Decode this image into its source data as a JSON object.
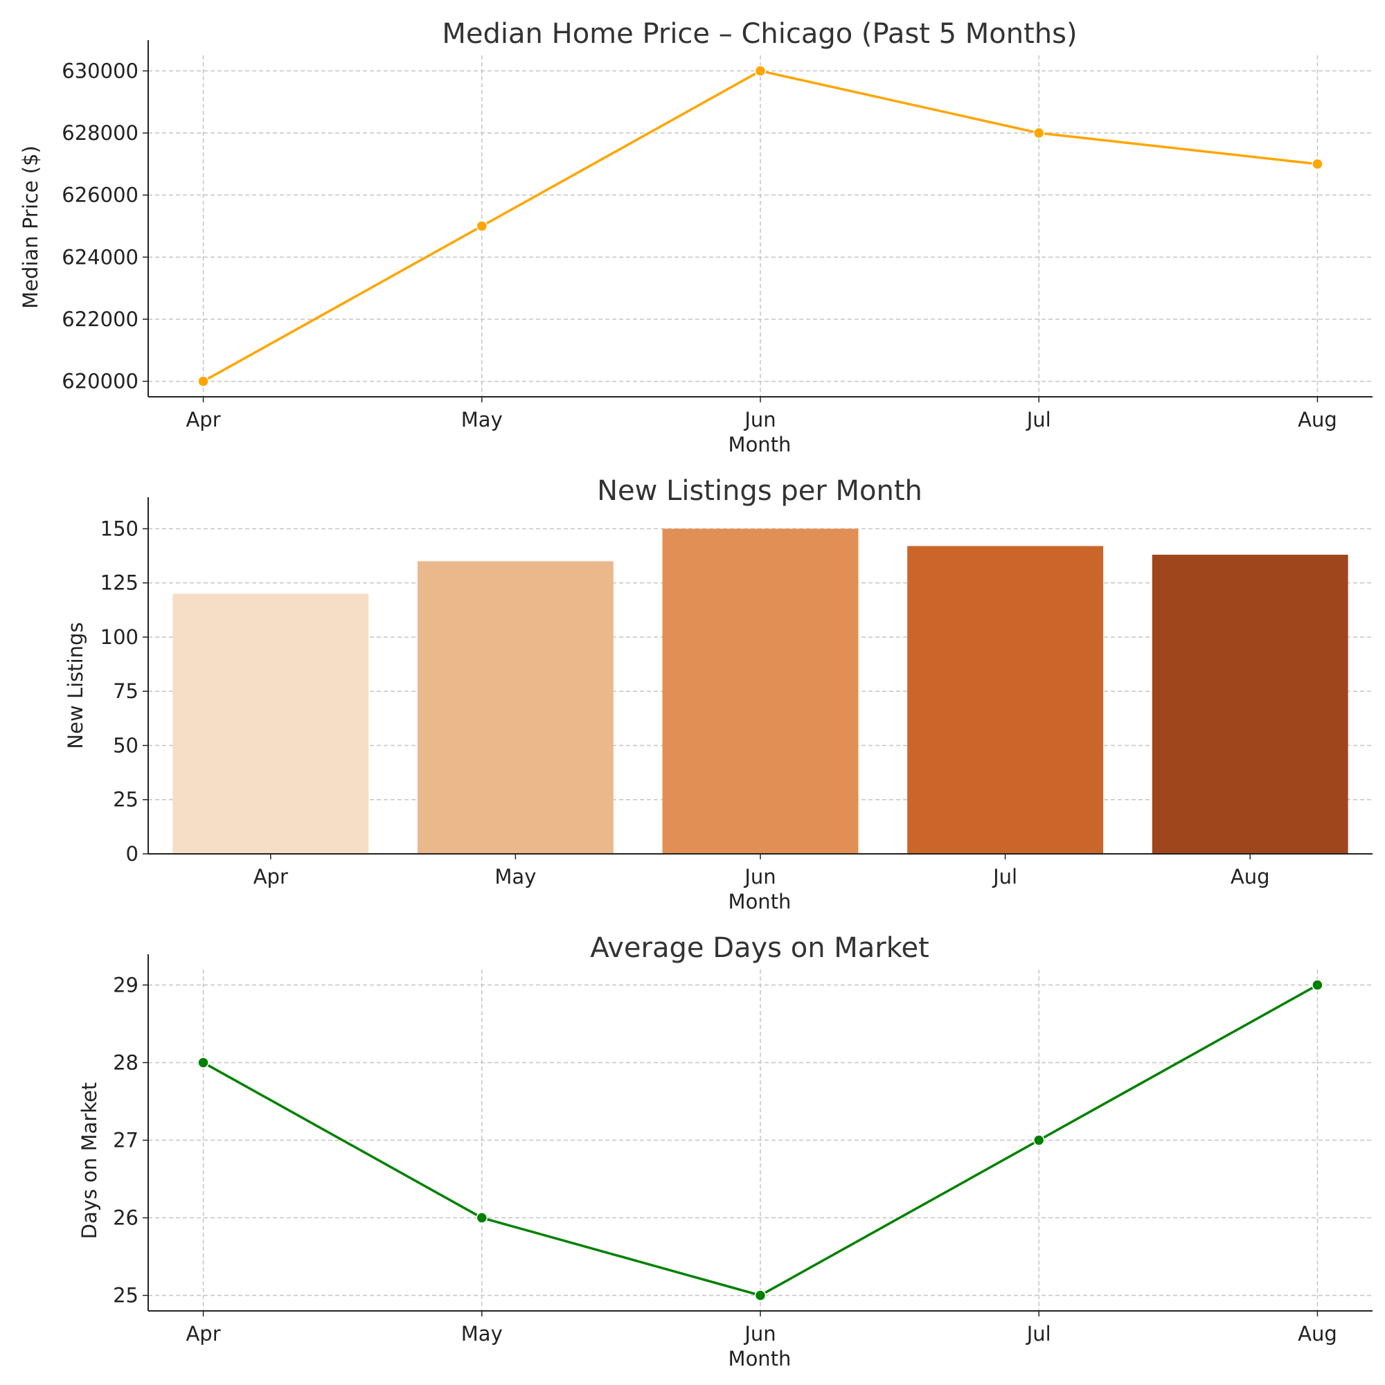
{
  "chart_data": [
    {
      "type": "line",
      "title": "Median Home Price – Chicago (Past 5 Months)",
      "xlabel": "Month",
      "ylabel": "Median Price ($)",
      "categories": [
        "Apr",
        "May",
        "Jun",
        "Jul",
        "Aug"
      ],
      "values": [
        620000,
        625000,
        630000,
        628000,
        627000
      ],
      "ylim": [
        619500,
        630500
      ],
      "yticks": [
        620000,
        622000,
        624000,
        626000,
        628000,
        630000
      ],
      "color": "#FFA500",
      "grid": true
    },
    {
      "type": "bar",
      "title": "New Listings per Month",
      "xlabel": "Month",
      "ylabel": "New Listings",
      "categories": [
        "Apr",
        "May",
        "Jun",
        "Jul",
        "Aug"
      ],
      "values": [
        120,
        135,
        150,
        142,
        138
      ],
      "ylim": [
        0,
        157.5
      ],
      "yticks": [
        0,
        25,
        50,
        75,
        100,
        125,
        150
      ],
      "colors": [
        "#F5DEC5",
        "#EBB88B",
        "#E18F55",
        "#CC652A",
        "#A0461C"
      ],
      "grid": true
    },
    {
      "type": "line",
      "title": "Average Days on Market",
      "xlabel": "Month",
      "ylabel": "Days on Market",
      "categories": [
        "Apr",
        "May",
        "Jun",
        "Jul",
        "Aug"
      ],
      "values": [
        28,
        26,
        25,
        27,
        29
      ],
      "ylim": [
        24.8,
        29.2
      ],
      "yticks": [
        25,
        26,
        27,
        28,
        29
      ],
      "color": "#008000",
      "grid": true
    }
  ]
}
